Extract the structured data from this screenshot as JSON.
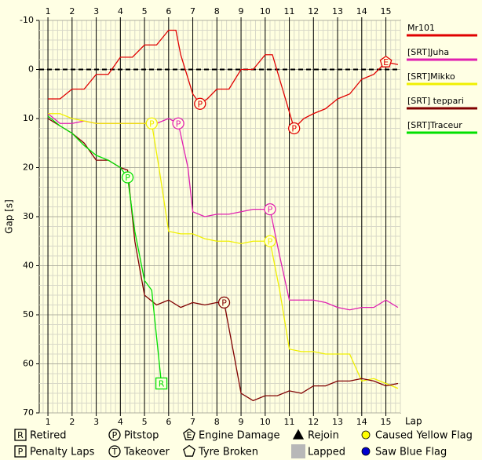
{
  "chart_data": {
    "type": "line",
    "y_label": "Gap [s]",
    "x_label": "Lap",
    "xlim": [
      0.64,
      15.6
    ],
    "xticks": [
      1,
      2,
      3,
      4,
      5,
      6,
      7,
      8,
      9,
      10,
      11,
      12,
      13,
      14,
      15
    ],
    "ylim": [
      -10,
      70
    ],
    "yticks": [
      -10,
      0,
      10,
      20,
      30,
      40,
      50,
      60,
      70
    ],
    "y_inverted": true,
    "grid": true,
    "reference_line": 0,
    "series": [
      {
        "name": "Mr101",
        "color": "#e00000",
        "x": [
          1,
          1.5,
          2,
          2.5,
          3,
          3.5,
          4,
          4.5,
          5,
          5.5,
          6,
          6.3,
          6.5,
          7,
          7.3,
          7.6,
          8,
          8.5,
          9,
          9.5,
          10,
          10.3,
          10.6,
          11.2,
          11.6,
          12,
          12.5,
          13,
          13.5,
          14,
          14.5,
          15,
          15.5
        ],
        "values": [
          6,
          6,
          4,
          4,
          1,
          1,
          -2.5,
          -2.5,
          -5,
          -5,
          -8,
          -8,
          -3,
          5,
          7,
          6,
          4,
          4,
          0,
          0,
          -3,
          -3,
          2,
          12,
          10,
          9,
          8,
          6,
          5,
          2,
          1,
          -1.5,
          -1
        ]
      },
      {
        "name": "[SRT]Juha",
        "color": "#e020b0",
        "x": [
          1,
          1.5,
          2,
          2.5,
          3,
          3.5,
          4,
          4.5,
          5,
          5.5,
          6,
          6.4,
          6.8,
          7,
          7.5,
          8,
          8.5,
          9,
          9.5,
          10,
          10.2,
          10.6,
          11,
          11.5,
          12,
          12.5,
          13,
          13.5,
          14,
          14.5,
          15,
          15.5
        ],
        "values": [
          9,
          11,
          11,
          10.5,
          11,
          11,
          11,
          11,
          11,
          11,
          10,
          11,
          20,
          29,
          30,
          29.5,
          29.5,
          29,
          28.5,
          28.5,
          28.5,
          38,
          47,
          47,
          47,
          47.5,
          48.5,
          49,
          48.5,
          48.5,
          47,
          48.5
        ]
      },
      {
        "name": "[SRT]Mikko",
        "color": "#f0f000",
        "x": [
          1,
          1.5,
          2,
          2.5,
          3,
          3.5,
          4,
          4.5,
          5,
          5.3,
          5.6,
          6,
          6.5,
          7,
          7.5,
          8,
          8.5,
          9,
          9.5,
          10,
          10.2,
          10.6,
          11,
          11.5,
          12,
          12.5,
          13,
          13.5,
          14,
          14.5,
          15,
          15.5
        ],
        "values": [
          9,
          9,
          10,
          10.5,
          11,
          11,
          11,
          11,
          11,
          11,
          20,
          33,
          33.5,
          33.5,
          34.5,
          35,
          35,
          35.5,
          35,
          35,
          35,
          45,
          57,
          57.5,
          57.5,
          58,
          58,
          58,
          63.5,
          63,
          64,
          65
        ]
      },
      {
        "name": "[SRT] teppari",
        "color": "#800000",
        "x": [
          1,
          1.5,
          2,
          2.5,
          3,
          3.5,
          4,
          4.3,
          4.6,
          5,
          5.5,
          6,
          6.5,
          7,
          7.5,
          8,
          8.3,
          8.7,
          9,
          9.5,
          10,
          10.5,
          11,
          11.5,
          12,
          12.5,
          13,
          13.5,
          14,
          14.5,
          15,
          15.5
        ],
        "values": [
          10,
          11.5,
          13,
          15,
          18.5,
          18.5,
          20,
          20.5,
          35,
          46,
          48,
          47,
          48.5,
          47.5,
          48,
          47.5,
          47.5,
          58,
          66,
          67.5,
          66.5,
          66.5,
          65.5,
          66,
          64.5,
          64.5,
          63.5,
          63.5,
          63,
          63.5,
          64.5,
          64
        ]
      },
      {
        "name": "[SRT]Traceur",
        "color": "#00e000",
        "x": [
          1,
          1.5,
          2,
          2.5,
          3,
          3.5,
          4,
          4.3,
          4.6,
          5,
          5.3,
          5.7
        ],
        "values": [
          9.5,
          11.5,
          13,
          15.5,
          17.5,
          18.5,
          20,
          22,
          33,
          43,
          45,
          64
        ]
      }
    ],
    "events": [
      {
        "series": 0,
        "x": 7.3,
        "y": 7,
        "shape": "circle",
        "letter": "P"
      },
      {
        "series": 0,
        "x": 11.2,
        "y": 12,
        "shape": "circle",
        "letter": "P"
      },
      {
        "series": 0,
        "x": 15,
        "y": -1.5,
        "shape": "pentagon",
        "letter": "E"
      },
      {
        "series": 1,
        "x": 6.4,
        "y": 11,
        "shape": "circle",
        "letter": "P"
      },
      {
        "series": 1,
        "x": 10.2,
        "y": 28.5,
        "shape": "circle",
        "letter": "P"
      },
      {
        "series": 2,
        "x": 5.3,
        "y": 11,
        "shape": "circle",
        "letter": "P"
      },
      {
        "series": 2,
        "x": 10.2,
        "y": 35,
        "shape": "circle",
        "letter": "P"
      },
      {
        "series": 3,
        "x": 8.3,
        "y": 47.5,
        "shape": "circle",
        "letter": "P"
      },
      {
        "series": 4,
        "x": 4.3,
        "y": 22,
        "shape": "circle",
        "letter": "P"
      },
      {
        "series": 4,
        "x": 5.7,
        "y": 64,
        "shape": "square",
        "letter": "R"
      }
    ],
    "symbol_legend": [
      {
        "shape": "square",
        "letter": "R",
        "label": "Retired"
      },
      {
        "shape": "circle",
        "letter": "P",
        "label": "Pitstop"
      },
      {
        "shape": "pentagon",
        "letter": "E",
        "label": "Engine Damage"
      },
      {
        "shape": "triangle",
        "label": "Rejoin"
      },
      {
        "shape": "yellow-dot",
        "label": "Caused Yellow Flag"
      },
      {
        "shape": "square",
        "letter": "P",
        "label": "Penalty Laps"
      },
      {
        "shape": "circle",
        "letter": "T",
        "label": "Takeover"
      },
      {
        "shape": "pentagon",
        "label": "Tyre Broken"
      },
      {
        "shape": "grey-square",
        "label": "Lapped"
      },
      {
        "shape": "blue-dot",
        "label": "Saw Blue Flag"
      }
    ]
  }
}
